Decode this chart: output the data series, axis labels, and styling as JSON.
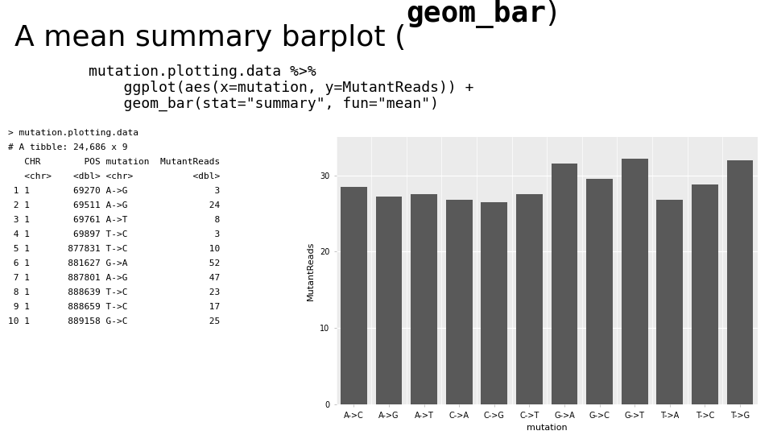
{
  "title_part1": "A mean summary barplot (",
  "title_bold": "geom_bar",
  "title_part2": ")",
  "subtitle_lines": [
    "mutation.plotting.data %>%",
    "    ggplot(aes(x=mutation, y=MutantReads)) +",
    "    geom_bar(stat=\"summary\", fun=\"mean\")"
  ],
  "console_lines": [
    "> mutation.plotting.data",
    "# A tibble: 24,686 x 9",
    "   CHR        POS mutation  MutantReads",
    "   <chr>    <dbl> <chr>           <dbl>",
    " 1 1        69270 A->G                3",
    " 2 1        69511 A->G               24",
    " 3 1        69761 A->T                8",
    " 4 1        69897 T->C                3",
    " 5 1       877831 T->C               10",
    " 6 1       881627 G->A               52",
    " 7 1       887801 A->G               47",
    " 8 1       888639 T->C               23",
    " 9 1       888659 T->C               17",
    "10 1       889158 G->C               25"
  ],
  "mutations": [
    "A->C",
    "A->G",
    "A->T",
    "C->A",
    "C->G",
    "C->T",
    "G->A",
    "G->C",
    "G->T",
    "T->A",
    "T->C",
    "T->G"
  ],
  "mean_values": [
    28.5,
    27.2,
    27.5,
    26.8,
    26.5,
    27.5,
    31.5,
    29.5,
    32.2,
    26.8,
    28.8,
    32.0
  ],
  "bar_color": "#595959",
  "bg_color": "#ebebeb",
  "panel_bg": "#ebebeb",
  "grid_color": "#ffffff",
  "ylabel": "MutantReads",
  "xlabel": "mutation",
  "ylim": [
    0,
    35
  ],
  "yticks": [
    0,
    10,
    20,
    30
  ],
  "title_fontsize": 26,
  "subtitle_fontsize": 13,
  "console_fontsize": 8,
  "axis_label_fontsize": 8,
  "tick_label_fontsize": 7
}
